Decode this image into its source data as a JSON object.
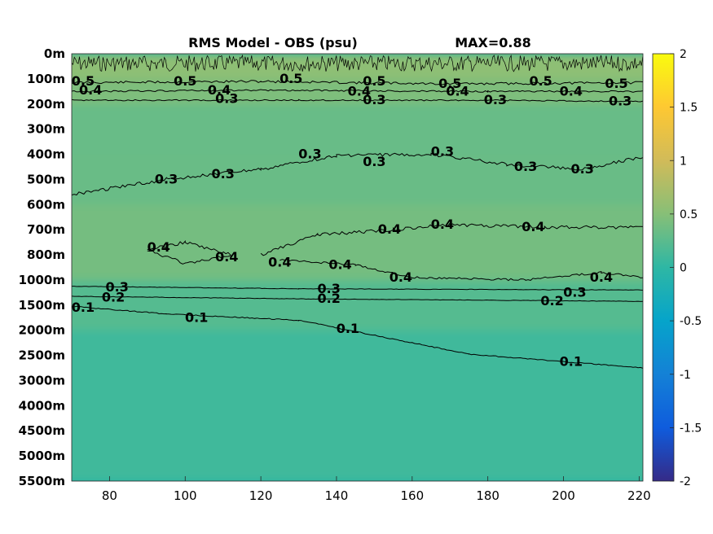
{
  "chart_data": {
    "type": "heatmap",
    "title": "RMS Model - OBS (psu)",
    "max_label": "MAX=0.88",
    "x_ticks": [
      "80",
      "100",
      "120",
      "140",
      "160",
      "180",
      "200",
      "220"
    ],
    "x_range": [
      70,
      221
    ],
    "y_ticks": [
      "0m",
      "100m",
      "200m",
      "300m",
      "400m",
      "500m",
      "600m",
      "700m",
      "800m",
      "1000m",
      "1500m",
      "2000m",
      "2500m",
      "3000m",
      "4000m",
      "4500m",
      "5000m",
      "5500m"
    ],
    "colorbar": {
      "range": [
        -2,
        2
      ],
      "ticks": [
        "2",
        "1.5",
        "1",
        "0.5",
        "0",
        "-0.5",
        "-1",
        "-1.5",
        "-2"
      ],
      "colormap": "parula"
    },
    "field_bands": [
      {
        "depth_top": "0m",
        "depth_bottom": "100m",
        "value": 0.55
      },
      {
        "depth_top": "100m",
        "depth_bottom": "200m",
        "value": 0.45
      },
      {
        "depth_top": "200m",
        "depth_bottom": "400m",
        "value": 0.32
      },
      {
        "depth_top": "400m",
        "depth_bottom": "600m",
        "value": 0.33
      },
      {
        "depth_top": "600m",
        "depth_bottom": "1000m",
        "value": 0.4
      },
      {
        "depth_top": "1000m",
        "depth_bottom": "2000m",
        "value": 0.22
      },
      {
        "depth_top": "2000m",
        "depth_bottom": "5500m",
        "value": 0.1
      }
    ],
    "contour_labels": [
      {
        "text": "0.5",
        "lon": 73,
        "depth_index": 1.1
      },
      {
        "text": "0.5",
        "lon": 100,
        "depth_index": 1.1
      },
      {
        "text": "0.5",
        "lon": 128,
        "depth_index": 1.0
      },
      {
        "text": "0.5",
        "lon": 150,
        "depth_index": 1.1
      },
      {
        "text": "0.5",
        "lon": 170,
        "depth_index": 1.2
      },
      {
        "text": "0.5",
        "lon": 194,
        "depth_index": 1.1
      },
      {
        "text": "0.5",
        "lon": 214,
        "depth_index": 1.2
      },
      {
        "text": "0.4",
        "lon": 75,
        "depth_index": 1.45
      },
      {
        "text": "0.4",
        "lon": 109,
        "depth_index": 1.45
      },
      {
        "text": "0.4",
        "lon": 146,
        "depth_index": 1.5
      },
      {
        "text": "0.4",
        "lon": 172,
        "depth_index": 1.5
      },
      {
        "text": "0.4",
        "lon": 202,
        "depth_index": 1.5
      },
      {
        "text": "0.3",
        "lon": 111,
        "depth_index": 1.8
      },
      {
        "text": "0.3",
        "lon": 150,
        "depth_index": 1.85
      },
      {
        "text": "0.3",
        "lon": 182,
        "depth_index": 1.85
      },
      {
        "text": "0.3",
        "lon": 215,
        "depth_index": 1.9
      },
      {
        "text": "0.3",
        "lon": 133,
        "depth_index": 4.0
      },
      {
        "text": "0.3",
        "lon": 150,
        "depth_index": 4.3
      },
      {
        "text": "0.3",
        "lon": 168,
        "depth_index": 3.9
      },
      {
        "text": "0.3",
        "lon": 190,
        "depth_index": 4.5
      },
      {
        "text": "0.3",
        "lon": 205,
        "depth_index": 4.6
      },
      {
        "text": "0.3",
        "lon": 95,
        "depth_index": 5.0
      },
      {
        "text": "0.3",
        "lon": 110,
        "depth_index": 4.8
      },
      {
        "text": "0.4",
        "lon": 93,
        "depth_index": 7.7
      },
      {
        "text": "0.4",
        "lon": 111,
        "depth_index": 8.1
      },
      {
        "text": "0.4",
        "lon": 125,
        "depth_index": 8.3
      },
      {
        "text": "0.4",
        "lon": 141,
        "depth_index": 8.4
      },
      {
        "text": "0.4",
        "lon": 154,
        "depth_index": 7.0
      },
      {
        "text": "0.4",
        "lon": 168,
        "depth_index": 6.8
      },
      {
        "text": "0.4",
        "lon": 192,
        "depth_index": 6.9
      },
      {
        "text": "0.4",
        "lon": 157,
        "depth_index": 8.9
      },
      {
        "text": "0.4",
        "lon": 210,
        "depth_index": 8.9
      },
      {
        "text": "0.3",
        "lon": 82,
        "depth_index": 9.3
      },
      {
        "text": "0.3",
        "lon": 138,
        "depth_index": 9.35
      },
      {
        "text": "0.3",
        "lon": 203,
        "depth_index": 9.5
      },
      {
        "text": "0.2",
        "lon": 81,
        "depth_index": 9.7
      },
      {
        "text": "0.2",
        "lon": 138,
        "depth_index": 9.75
      },
      {
        "text": "0.2",
        "lon": 197,
        "depth_index": 9.85
      },
      {
        "text": "0.1",
        "lon": 73,
        "depth_index": 10.1
      },
      {
        "text": "0.1",
        "lon": 103,
        "depth_index": 10.5
      },
      {
        "text": "0.1",
        "lon": 143,
        "depth_index": 10.95
      },
      {
        "text": "0.1",
        "lon": 202,
        "depth_index": 12.25
      }
    ]
  }
}
